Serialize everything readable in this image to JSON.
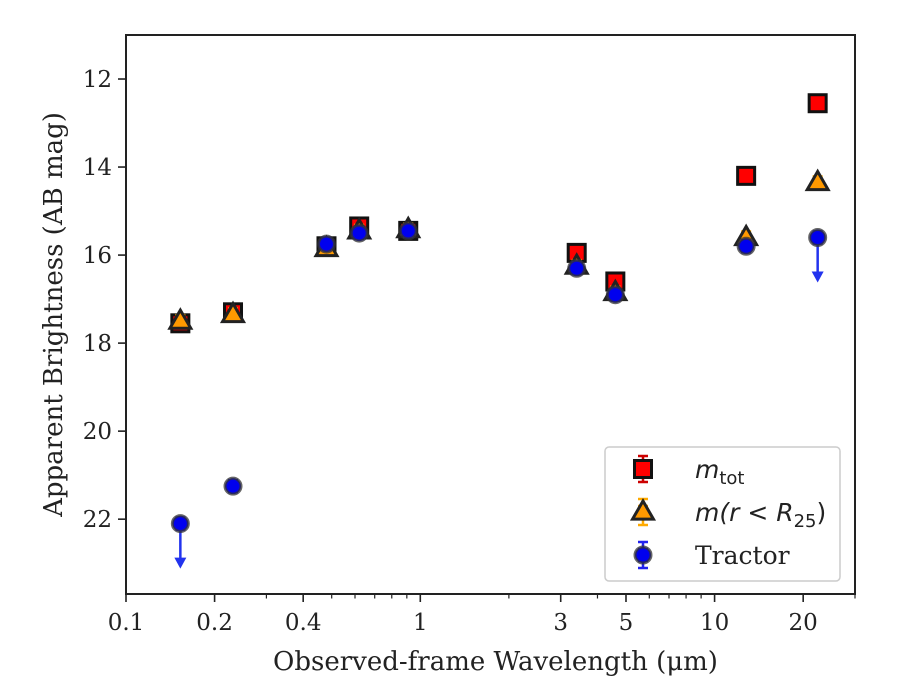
{
  "chart_data": {
    "type": "scatter",
    "xlabel": "Observed-frame Wavelength (μm)",
    "ylabel": "Apparent Brightness (AB mag)",
    "xscale": "log",
    "xlim": [
      0.1,
      30
    ],
    "ylim": [
      23.7,
      11.0
    ],
    "y_inverted": true,
    "x_ticks": [
      {
        "value": 0.1,
        "label": "0.1"
      },
      {
        "value": 0.2,
        "label": "0.2"
      },
      {
        "value": 0.4,
        "label": "0.4"
      },
      {
        "value": 1,
        "label": "1"
      },
      {
        "value": 3,
        "label": "3"
      },
      {
        "value": 5,
        "label": "5"
      },
      {
        "value": 10,
        "label": "10"
      },
      {
        "value": 20,
        "label": "20"
      }
    ],
    "y_ticks": [
      {
        "value": 12,
        "label": "12"
      },
      {
        "value": 14,
        "label": "14"
      },
      {
        "value": 16,
        "label": "16"
      },
      {
        "value": 18,
        "label": "18"
      },
      {
        "value": 20,
        "label": "20"
      },
      {
        "value": 22,
        "label": "22"
      }
    ],
    "grid": false,
    "legend_position": "lower-right",
    "series": [
      {
        "name": "m_tot",
        "legend_main": "m",
        "legend_sub": "tot",
        "marker": "square",
        "color": "#ff0000",
        "errorbar_color": "#cc0000",
        "x": [
          0.153,
          0.231,
          0.48,
          0.62,
          0.91,
          3.4,
          4.6,
          12.8,
          22.4
        ],
        "y": [
          17.55,
          17.3,
          15.8,
          15.35,
          15.45,
          15.95,
          16.6,
          14.2,
          12.55
        ]
      },
      {
        "name": "m(r<R25)",
        "legend_main": "m(r < R",
        "legend_sub": "25",
        "legend_close": ")",
        "marker": "triangle",
        "color": "#ff9900",
        "errorbar_color": "#ffaa00",
        "x": [
          0.153,
          0.231,
          0.48,
          0.62,
          0.91,
          3.4,
          4.6,
          12.8,
          22.4
        ],
        "y": [
          17.5,
          17.35,
          15.85,
          15.45,
          15.42,
          16.25,
          16.85,
          15.6,
          14.35
        ]
      },
      {
        "name": "Tractor",
        "legend_main": "Tractor",
        "marker": "circle",
        "color": "#0000ee",
        "errorbar_color": "#2222ee",
        "x": [
          0.153,
          0.231,
          0.48,
          0.62,
          0.91,
          3.4,
          4.6,
          12.8,
          22.4
        ],
        "y": [
          22.1,
          21.25,
          15.75,
          15.5,
          15.45,
          16.3,
          16.9,
          15.8,
          15.6
        ],
        "upper_limit": [
          true,
          false,
          false,
          false,
          false,
          false,
          false,
          false,
          true
        ]
      }
    ]
  }
}
